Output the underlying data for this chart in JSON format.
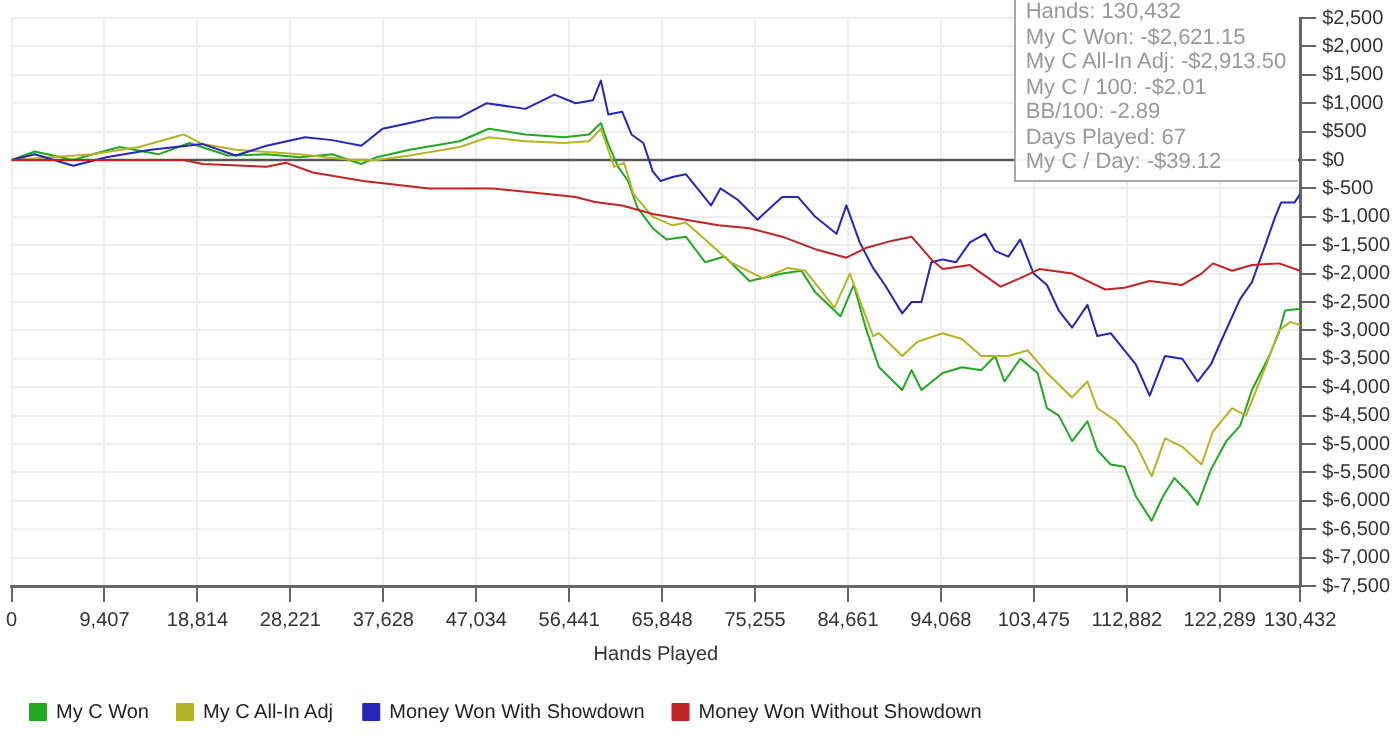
{
  "chart_data": {
    "type": "line",
    "xlabel": "Hands Played",
    "xlim": [
      0,
      130432
    ],
    "xticks": [
      {
        "value": 0,
        "label": "0"
      },
      {
        "value": 9407,
        "label": "9,407"
      },
      {
        "value": 18814,
        "label": "18,814"
      },
      {
        "value": 28221,
        "label": "28,221"
      },
      {
        "value": 37628,
        "label": "37,628"
      },
      {
        "value": 47034,
        "label": "47,034"
      },
      {
        "value": 56441,
        "label": "56,441"
      },
      {
        "value": 65848,
        "label": "65,848"
      },
      {
        "value": 75255,
        "label": "75,255"
      },
      {
        "value": 84661,
        "label": "84,661"
      },
      {
        "value": 94068,
        "label": "94,068"
      },
      {
        "value": 103475,
        "label": "103,475"
      },
      {
        "value": 112882,
        "label": "112,882"
      },
      {
        "value": 122289,
        "label": "122,289"
      },
      {
        "value": 130432,
        "label": "130,432"
      }
    ],
    "ylim": [
      -7500,
      2500
    ],
    "yticks": [
      {
        "value": -7500,
        "label": "$-7,500"
      },
      {
        "value": -7000,
        "label": "$-7,000"
      },
      {
        "value": -6500,
        "label": "$-6,500"
      },
      {
        "value": -6000,
        "label": "$-6,000"
      },
      {
        "value": -5500,
        "label": "$-5,500"
      },
      {
        "value": -5000,
        "label": "$-5,000"
      },
      {
        "value": -4500,
        "label": "$-4,500"
      },
      {
        "value": -4000,
        "label": "$-4,000"
      },
      {
        "value": -3500,
        "label": "$-3,500"
      },
      {
        "value": -3000,
        "label": "$-3,000"
      },
      {
        "value": -2500,
        "label": "$-2,500"
      },
      {
        "value": -2000,
        "label": "$-2,000"
      },
      {
        "value": -1500,
        "label": "$-1,500"
      },
      {
        "value": -1000,
        "label": "$-1,000"
      },
      {
        "value": -500,
        "label": "$-500"
      },
      {
        "value": 0,
        "label": "$0"
      },
      {
        "value": 500,
        "label": "$500"
      },
      {
        "value": 1000,
        "label": "$1,000"
      },
      {
        "value": 1500,
        "label": "$1,500"
      },
      {
        "value": 2000,
        "label": "$2,000"
      },
      {
        "value": 2500,
        "label": "$2,500"
      }
    ],
    "grid": true,
    "legend": "bottom",
    "marker": "none",
    "line_style": "solid",
    "ref_lines": [
      {
        "axis": "y",
        "value": 0,
        "color": "#555555"
      }
    ],
    "annotations": [
      "Hands: 130,432",
      "My C Won: -$2,621.15",
      "My C All-In Adj: -$2,913.50",
      "My C / 100: -$2.01",
      "BB/100: -2.89",
      "Days Played: 67",
      "My C / Day: -$39.12"
    ],
    "series": [
      {
        "name": "My C Won",
        "color": "#22a822",
        "x": [
          0,
          2350,
          6250,
          8200,
          10950,
          14850,
          18000,
          21900,
          25800,
          29150,
          32450,
          35400,
          36950,
          40300,
          45350,
          48300,
          52000,
          55900,
          58450,
          59650,
          60400,
          61400,
          62400,
          63350,
          64900,
          66300,
          68250,
          70200,
          72150,
          74700,
          78000,
          79950,
          81350,
          83900,
          85250,
          86450,
          87800,
          90150,
          91100,
          92100,
          94250,
          96200,
          98150,
          99550,
          100500,
          102100,
          103850,
          104800,
          106000,
          107350,
          108900,
          109900,
          111250,
          112650,
          113800,
          115400,
          116550,
          117700,
          119100,
          120050,
          121400,
          122950,
          124350,
          125550,
          127300,
          128300,
          128900,
          130432
        ],
        "values": [
          0,
          150,
          0,
          100,
          230,
          100,
          300,
          80,
          100,
          50,
          100,
          -70,
          50,
          180,
          330,
          550,
          450,
          400,
          450,
          650,
          280,
          -120,
          -370,
          -840,
          -1200,
          -1400,
          -1350,
          -1800,
          -1700,
          -2130,
          -2000,
          -1950,
          -2330,
          -2750,
          -2200,
          -2950,
          -3650,
          -4050,
          -3700,
          -4050,
          -3750,
          -3650,
          -3700,
          -3450,
          -3900,
          -3500,
          -3750,
          -4370,
          -4500,
          -4950,
          -4600,
          -5110,
          -5360,
          -5400,
          -5920,
          -6350,
          -5920,
          -5600,
          -5850,
          -6070,
          -5450,
          -4950,
          -4680,
          -4050,
          -3450,
          -3030,
          -2650,
          -2620
        ]
      },
      {
        "name": "My C All-In Adj",
        "color": "#b4b428",
        "x": [
          0,
          8200,
          12900,
          17400,
          19350,
          22700,
          29150,
          34400,
          36950,
          40300,
          45350,
          48300,
          52000,
          55900,
          58450,
          59650,
          61000,
          62000,
          62950,
          64900,
          66900,
          68250,
          70200,
          72750,
          76050,
          78600,
          80350,
          83300,
          84850,
          87200,
          87800,
          90150,
          91700,
          94250,
          96200,
          98150,
          100900,
          102850,
          104800,
          107350,
          108900,
          109900,
          111850,
          113800,
          115400,
          116750,
          118500,
          120450,
          121600,
          123550,
          124950,
          126900,
          128300,
          129450,
          130432
        ],
        "values": [
          0,
          100,
          230,
          450,
          280,
          180,
          100,
          0,
          0,
          80,
          230,
          400,
          330,
          300,
          330,
          550,
          -120,
          -50,
          -600,
          -1000,
          -1150,
          -1100,
          -1400,
          -1800,
          -2080,
          -1900,
          -1950,
          -2600,
          -2000,
          -3100,
          -3050,
          -3450,
          -3200,
          -3050,
          -3150,
          -3450,
          -3450,
          -3350,
          -3750,
          -4180,
          -3900,
          -4370,
          -4600,
          -5000,
          -5570,
          -4900,
          -5050,
          -5360,
          -4780,
          -4370,
          -4500,
          -3650,
          -3000,
          -2850,
          -2910
        ]
      },
      {
        "name": "Money Won With Showdown",
        "color": "#2626b8",
        "x": [
          0,
          2350,
          6250,
          9600,
          14100,
          19350,
          22700,
          25800,
          29700,
          32450,
          35400,
          37550,
          40300,
          42800,
          45350,
          48100,
          52000,
          54950,
          57100,
          58850,
          59650,
          60400,
          61800,
          62750,
          63950,
          64900,
          65700,
          66900,
          68250,
          70800,
          71750,
          73500,
          75500,
          78000,
          79600,
          81350,
          83500,
          84500,
          85850,
          87200,
          88400,
          90150,
          91100,
          92100,
          93100,
          94250,
          95600,
          97000,
          98550,
          99550,
          100900,
          102100,
          103450,
          104800,
          106000,
          107350,
          108900,
          109900,
          111250,
          112650,
          113800,
          115200,
          116750,
          118500,
          120050,
          121400,
          122400,
          124350,
          125550,
          126900,
          127900,
          128500,
          129850,
          130432
        ],
        "values": [
          0,
          100,
          -100,
          50,
          180,
          280,
          80,
          250,
          400,
          350,
          250,
          550,
          650,
          750,
          750,
          1000,
          900,
          1150,
          1000,
          1050,
          1400,
          800,
          850,
          450,
          300,
          -200,
          -370,
          -300,
          -250,
          -800,
          -500,
          -700,
          -1050,
          -650,
          -650,
          -1000,
          -1300,
          -800,
          -1450,
          -1900,
          -2200,
          -2700,
          -2500,
          -2500,
          -1800,
          -1750,
          -1800,
          -1450,
          -1300,
          -1600,
          -1700,
          -1400,
          -2000,
          -2200,
          -2650,
          -2950,
          -2550,
          -3100,
          -3050,
          -3350,
          -3600,
          -4150,
          -3450,
          -3500,
          -3900,
          -3600,
          -3200,
          -2450,
          -2150,
          -1500,
          -1000,
          -750,
          -750,
          -600
        ]
      },
      {
        "name": "Money Won Without Showdown",
        "color": "#c02424",
        "x": [
          0,
          6250,
          9600,
          17400,
          19350,
          25800,
          27800,
          30500,
          35600,
          42250,
          48700,
          52000,
          57100,
          59050,
          61800,
          64900,
          68250,
          71550,
          74700,
          78000,
          81350,
          84500,
          86450,
          89150,
          91100,
          93100,
          94250,
          97000,
          100100,
          102100,
          104050,
          107350,
          110700,
          112650,
          115200,
          118500,
          120450,
          121600,
          123550,
          125550,
          128300,
          130432
        ],
        "values": [
          0,
          0,
          0,
          0,
          -70,
          -120,
          -50,
          -220,
          -370,
          -500,
          -500,
          -560,
          -650,
          -740,
          -800,
          -950,
          -1050,
          -1150,
          -1200,
          -1350,
          -1570,
          -1720,
          -1550,
          -1420,
          -1350,
          -1750,
          -1920,
          -1850,
          -2230,
          -2080,
          -1920,
          -2000,
          -2280,
          -2250,
          -2130,
          -2200,
          -2000,
          -1820,
          -1950,
          -1850,
          -1820,
          -1950
        ]
      }
    ]
  }
}
